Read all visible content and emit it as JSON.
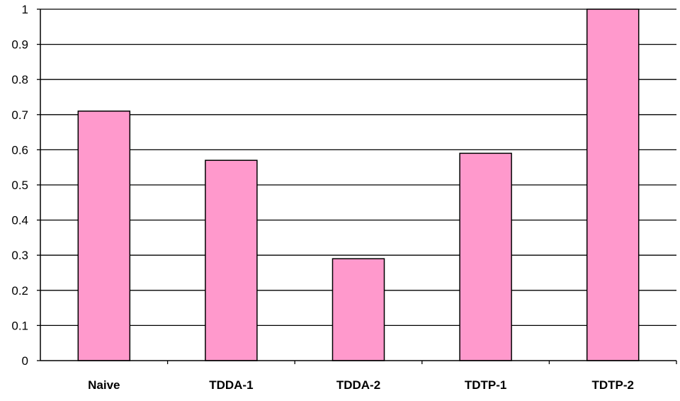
{
  "chart_data": {
    "type": "bar",
    "title": "",
    "xlabel": "",
    "ylabel": "",
    "categories": [
      "Naive",
      "TDDA-1",
      "TDDA-2",
      "TDTP-1",
      "TDTP-2"
    ],
    "values": [
      0.71,
      0.57,
      0.29,
      0.59,
      1.0
    ],
    "ylim": [
      0,
      1
    ],
    "yticks": [
      0,
      0.1,
      0.2,
      0.3,
      0.4,
      0.5,
      0.6,
      0.7,
      0.8,
      0.9,
      1
    ],
    "ytick_labels": [
      "0",
      "0.1",
      "0.2",
      "0.3",
      "0.4",
      "0.5",
      "0.6",
      "0.7",
      "0.8",
      "0.9",
      "1"
    ],
    "grid": true,
    "legend": "none",
    "bar_color": "#ff99cc",
    "bar_edge_color": "#000000"
  }
}
